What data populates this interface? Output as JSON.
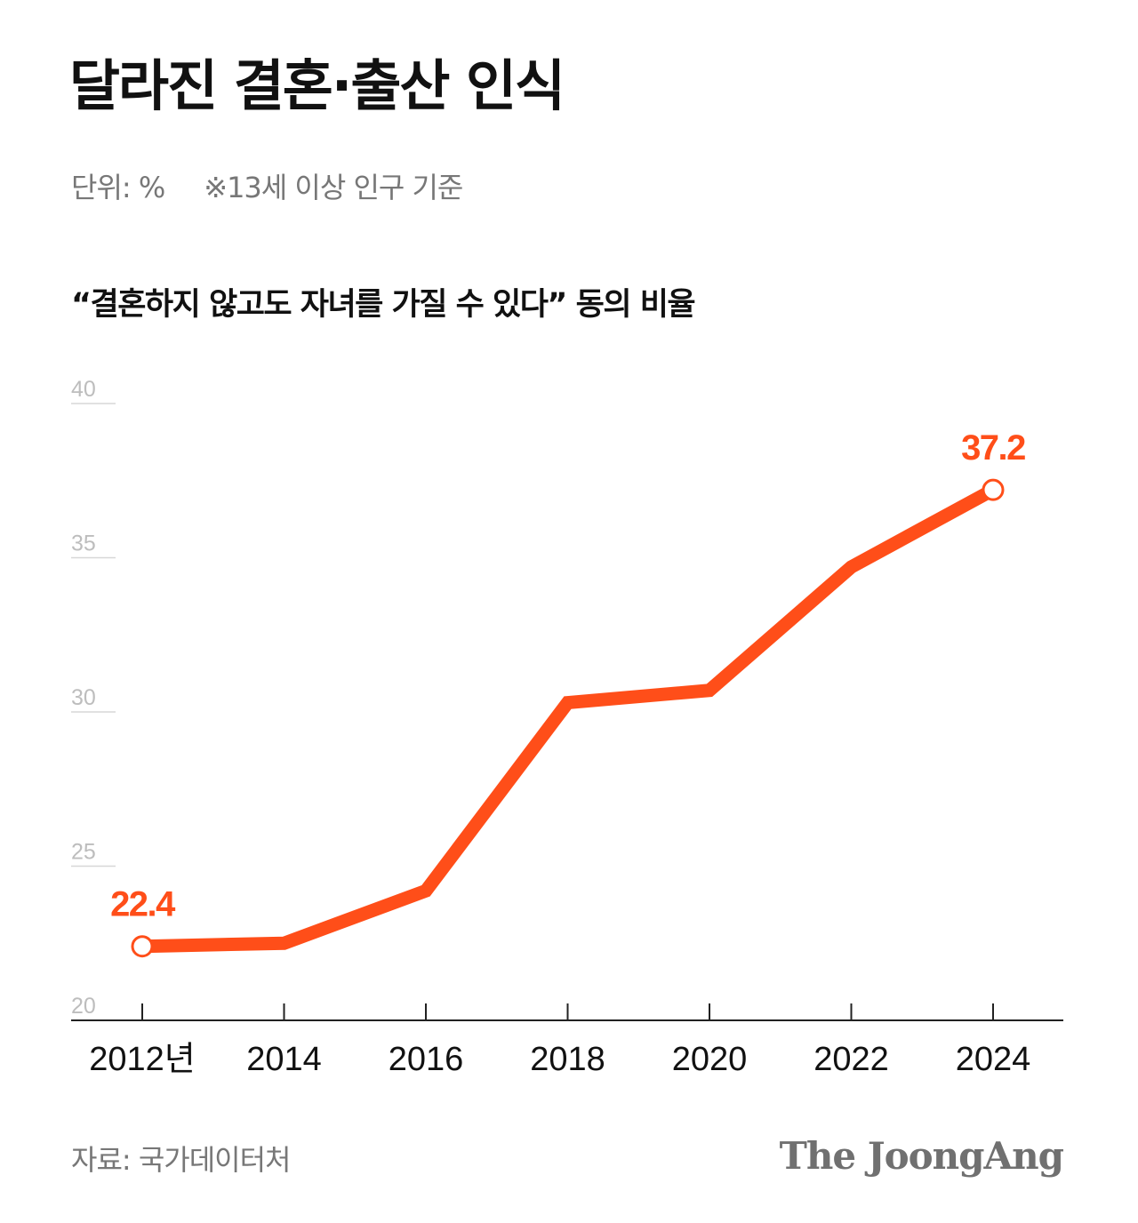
{
  "title": "달라진 결혼·출산 인식",
  "unit": "단위: %",
  "note": "※13세 이상 인구 기준",
  "subtitle": "“결혼하지 않고도 자녀를 가질 수 있다” 동의 비율",
  "source": "자료: 국가데이터처",
  "logo": "The JoongAng",
  "chart_data": {
    "type": "line",
    "x": [
      "2012년",
      "2014",
      "2016",
      "2018",
      "2020",
      "2022",
      "2024"
    ],
    "series": [
      {
        "values": [
          22.4,
          22.5,
          24.2,
          30.3,
          30.7,
          34.7,
          37.2
        ]
      }
    ],
    "ylim": [
      20,
      40
    ],
    "yticks": [
      20,
      25,
      30,
      35,
      40
    ],
    "labeled_points": [
      {
        "index": 0,
        "label": "22.4"
      },
      {
        "index": 6,
        "label": "37.2"
      }
    ],
    "line_color": "#ff4e19",
    "grid": true
  }
}
